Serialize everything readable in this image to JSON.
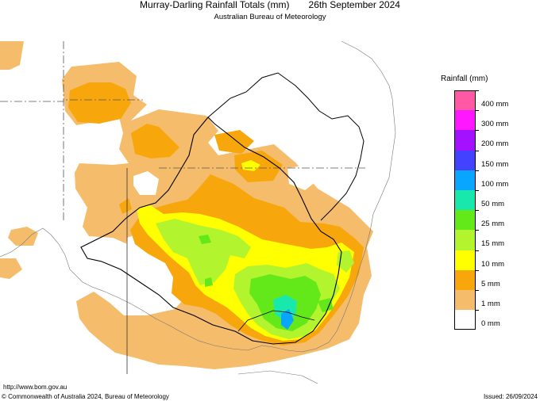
{
  "header": {
    "title": "Murray-Darling Rainfall Totals (mm)",
    "date": "26th September 2024",
    "subtitle": "Australian Bureau of Meteorology"
  },
  "legend": {
    "title": "Rainfall (mm)",
    "classes": [
      {
        "label": "400 mm",
        "color": "#ff59a6"
      },
      {
        "label": "300 mm",
        "color": "#ff18ff"
      },
      {
        "label": "200 mm",
        "color": "#a411ff"
      },
      {
        "label": "150 mm",
        "color": "#4242ff"
      },
      {
        "label": "100 mm",
        "color": "#09a6ff"
      },
      {
        "label": "50 mm",
        "color": "#19e8ad"
      },
      {
        "label": "25 mm",
        "color": "#63e81a"
      },
      {
        "label": "15 mm",
        "color": "#b2f42d"
      },
      {
        "label": "10 mm",
        "color": "#ffff00"
      },
      {
        "label": "5 mm",
        "color": "#f7a70c"
      },
      {
        "label": "1 mm",
        "color": "#f5bc6b"
      },
      {
        "label": "0 mm",
        "color": "#ffffff"
      }
    ]
  },
  "footer": {
    "url": "http://www.bom.gov.au",
    "copyright": "© Commonwealth of Australia 2024, Bureau of Meteorology",
    "issued": "Issued: 26/09/2024"
  }
}
